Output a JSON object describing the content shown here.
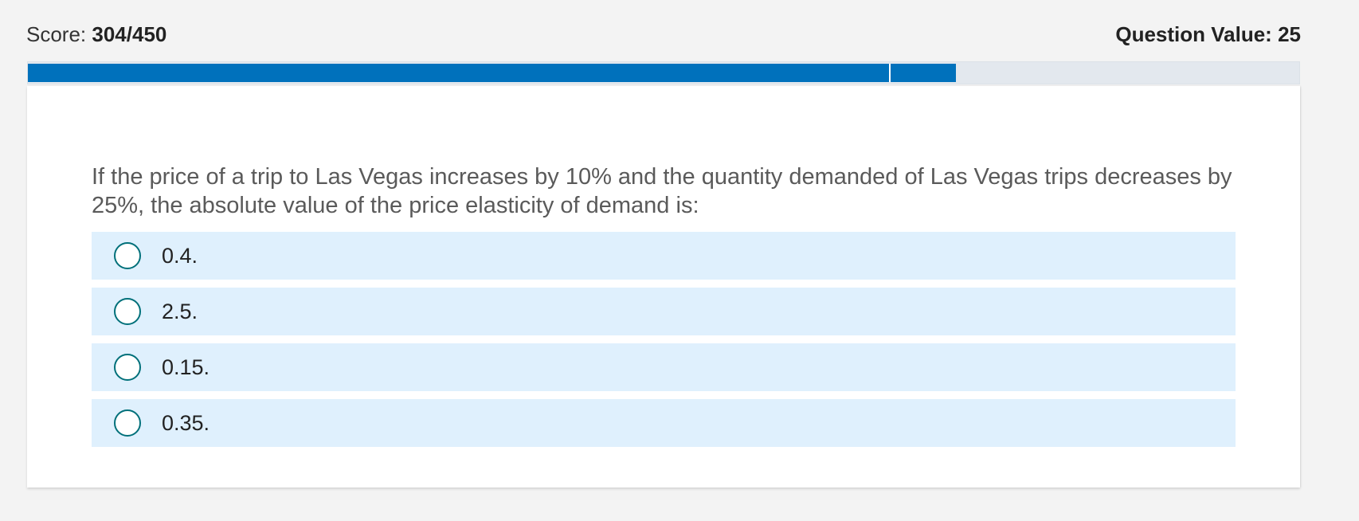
{
  "header": {
    "score_label": "Score: ",
    "score_value": "304/450",
    "question_value": "Question Value: 25"
  },
  "progress": {
    "fraction": 0.73,
    "segment_marker": 0.6775,
    "color": "#0071bc"
  },
  "question": {
    "text": "If the price of a trip to Las Vegas increases by 10% and the quantity demanded of Las Vegas trips decreases by 25%, the absolute value of the price elasticity of demand is:"
  },
  "options": [
    {
      "label": "0.4."
    },
    {
      "label": "2.5."
    },
    {
      "label": "0.15."
    },
    {
      "label": "0.35."
    }
  ]
}
